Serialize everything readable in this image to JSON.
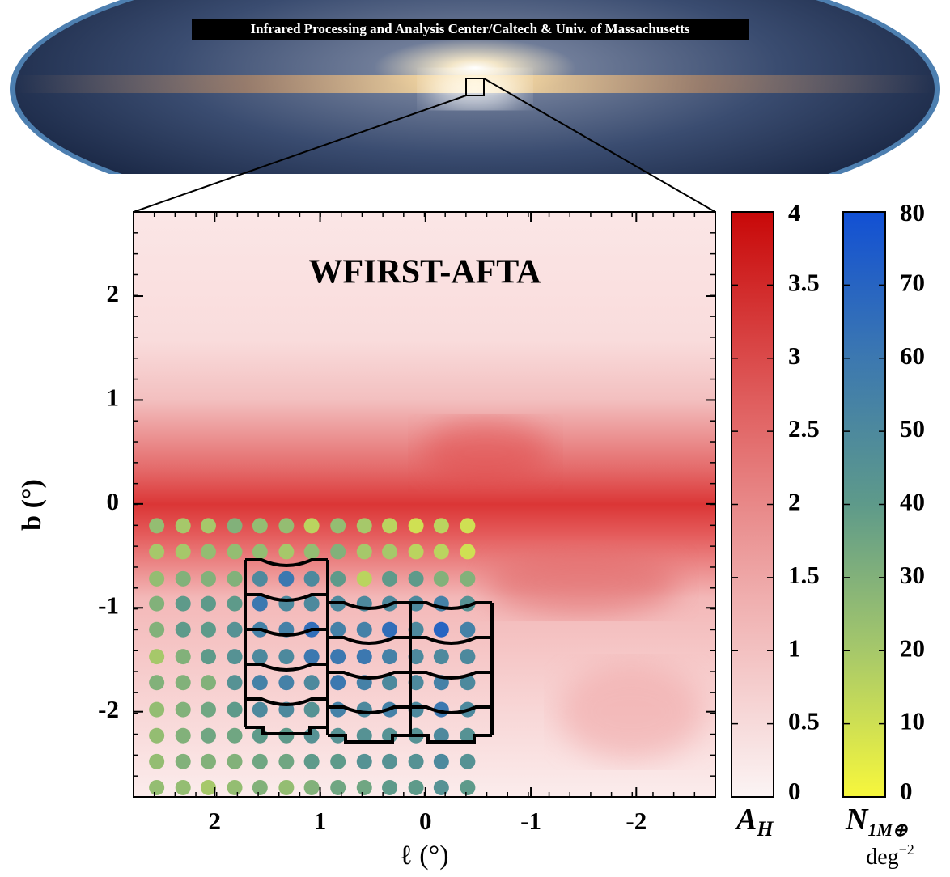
{
  "banner": "Infrared Processing and Analysis Center/Caltech & Univ. of Massachusetts",
  "chart_data": {
    "type": "scatter",
    "title": "WFIRST-AFTA",
    "xlabel": "ℓ (°)",
    "ylabel": "b (°)",
    "xlim": [
      2.77,
      -2.75
    ],
    "ylim": [
      -2.82,
      2.81
    ],
    "xticks": [
      2,
      1,
      0,
      -1,
      -2
    ],
    "yticks": [
      -2,
      -1,
      0,
      1,
      2
    ],
    "x": [
      2.55,
      2.3,
      2.06,
      1.81,
      1.57,
      1.32,
      1.08,
      0.83,
      0.58,
      0.34,
      0.09,
      -0.15,
      -0.4
    ],
    "y": [
      -0.21,
      -0.46,
      -0.72,
      -0.96,
      -1.21,
      -1.47,
      -1.72,
      -1.98,
      -2.23,
      -2.48,
      -2.73
    ],
    "values": [
      [
        25,
        20,
        20,
        30,
        25,
        25,
        15,
        25,
        20,
        15,
        10,
        15,
        10
      ],
      [
        20,
        20,
        25,
        25,
        25,
        20,
        25,
        30,
        20,
        20,
        15,
        15,
        10
      ],
      [
        25,
        30,
        30,
        30,
        50,
        60,
        50,
        40,
        15,
        40,
        40,
        30,
        30
      ],
      [
        30,
        40,
        40,
        40,
        60,
        50,
        50,
        50,
        50,
        50,
        50,
        55,
        45
      ],
      [
        30,
        40,
        40,
        45,
        55,
        55,
        65,
        55,
        55,
        65,
        50,
        70,
        55
      ],
      [
        20,
        30,
        40,
        45,
        50,
        50,
        60,
        60,
        60,
        55,
        50,
        50,
        50
      ],
      [
        30,
        30,
        30,
        45,
        55,
        55,
        50,
        60,
        55,
        50,
        50,
        55,
        50
      ],
      [
        25,
        30,
        35,
        40,
        50,
        50,
        45,
        55,
        50,
        55,
        50,
        60,
        50
      ],
      [
        25,
        30,
        35,
        35,
        40,
        40,
        45,
        45,
        45,
        45,
        45,
        50,
        45
      ],
      [
        25,
        30,
        30,
        30,
        35,
        35,
        40,
        40,
        45,
        45,
        45,
        50,
        45
      ],
      [
        25,
        25,
        20,
        25,
        30,
        25,
        30,
        35,
        35,
        40,
        40,
        45,
        40
      ]
    ],
    "colorbars": [
      {
        "label": "A",
        "label_sub": "H",
        "lim": [
          0,
          4
        ],
        "ticks": [
          0,
          0.5,
          1,
          1.5,
          2,
          2.5,
          3,
          3.5,
          4
        ],
        "colors": [
          "#fbf4f4",
          "#f0b0b0",
          "#e06060",
          "#c80808"
        ]
      },
      {
        "label": "N",
        "label_sub": "1M⊕",
        "unit": "deg",
        "unit_sup": "−2",
        "lim": [
          0,
          80
        ],
        "ticks": [
          0,
          10,
          20,
          30,
          40,
          50,
          60,
          70,
          80
        ],
        "colors": [
          "#f7f73c",
          "#a6c86a",
          "#5e9a8a",
          "#3c78b0",
          "#1250d4"
        ]
      }
    ]
  }
}
